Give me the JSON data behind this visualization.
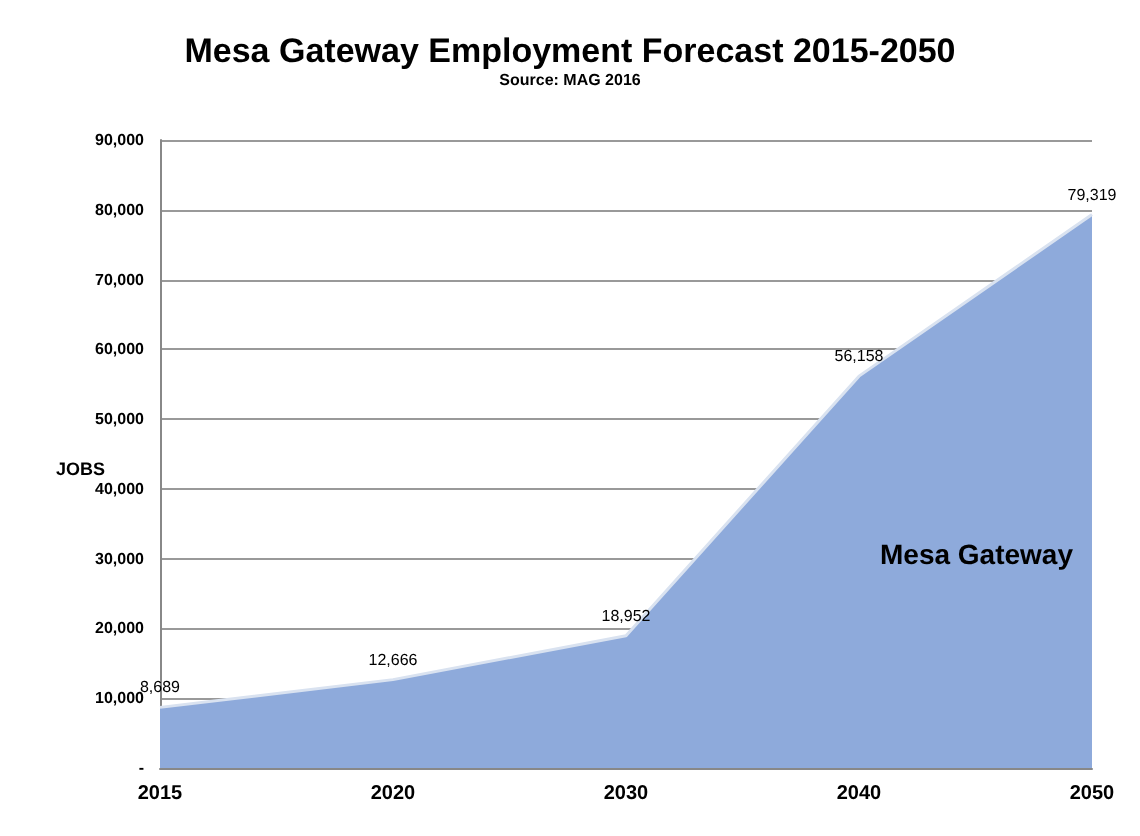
{
  "chart_data": {
    "type": "area",
    "title": "Mesa Gateway Employment Forecast 2015-2050",
    "subtitle": "Source: MAG 2016",
    "ylabel": "JOBS",
    "categories": [
      "2015",
      "2020",
      "2030",
      "2040",
      "2050"
    ],
    "series": [
      {
        "name": "Mesa Gateway",
        "color": "#8eaadb",
        "values": [
          8689,
          12666,
          18952,
          56158,
          79319
        ],
        "value_labels": [
          "8,689",
          "12,666",
          "18,952",
          "56,158",
          "79,319"
        ]
      }
    ],
    "ylim": [
      0,
      90000
    ],
    "yticks": [
      {
        "value": 0,
        "label": "-"
      },
      {
        "value": 10000,
        "label": "10,000"
      },
      {
        "value": 20000,
        "label": "20,000"
      },
      {
        "value": 30000,
        "label": "30,000"
      },
      {
        "value": 40000,
        "label": "40,000"
      },
      {
        "value": 50000,
        "label": "50,000"
      },
      {
        "value": 60000,
        "label": "60,000"
      },
      {
        "value": 70000,
        "label": "70,000"
      },
      {
        "value": 80000,
        "label": "80,000"
      },
      {
        "value": 90000,
        "label": "90,000"
      }
    ],
    "grid": "y",
    "legend": false
  }
}
